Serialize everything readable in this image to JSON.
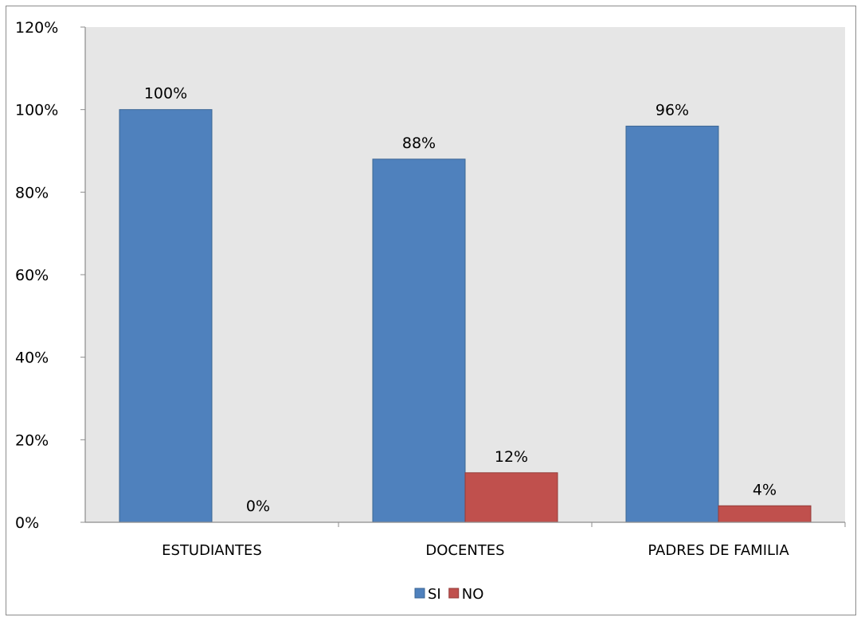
{
  "chart_data": {
    "type": "bar",
    "categories": [
      "ESTUDIANTES",
      "DOCENTES",
      "PADRES DE FAMILIA"
    ],
    "series": [
      {
        "name": "SI",
        "values": [
          100,
          88,
          96
        ],
        "labels": [
          "100%",
          "88%",
          "96%"
        ],
        "color": "#4f81bd",
        "stroke": "#3b6694"
      },
      {
        "name": "NO",
        "values": [
          0,
          12,
          4
        ],
        "labels": [
          "0%",
          "12%",
          "4%"
        ],
        "color": "#c0504d",
        "stroke": "#943b39"
      }
    ],
    "ylim": [
      0,
      120
    ],
    "yticks": [
      0,
      20,
      40,
      60,
      80,
      100,
      120
    ],
    "ytick_labels": [
      "0%",
      "20%",
      "40%",
      "60%",
      "80%",
      "100%",
      "120%"
    ],
    "grid": false,
    "plot_background": "#e6e6e6",
    "legend_position": "bottom"
  }
}
